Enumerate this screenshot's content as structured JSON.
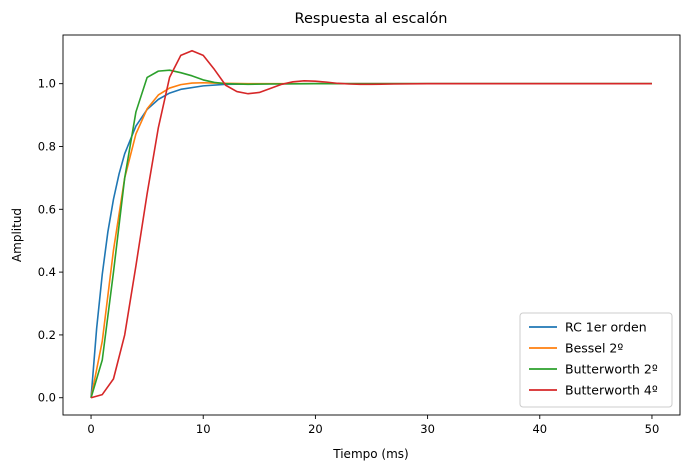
{
  "chart_data": {
    "type": "line",
    "title": "Respuesta al escalón",
    "xlabel": "Tiempo (ms)",
    "ylabel": "Amplitud",
    "xlim": [
      -2.5,
      52.5
    ],
    "ylim": [
      -0.055,
      1.155
    ],
    "xticks": [
      0,
      10,
      20,
      30,
      40,
      50
    ],
    "xtick_labels": [
      "0",
      "10",
      "20",
      "30",
      "40",
      "50"
    ],
    "yticks": [
      0.0,
      0.2,
      0.4,
      0.6,
      0.8,
      1.0
    ],
    "ytick_labels": [
      "0.0",
      "0.2",
      "0.4",
      "0.6",
      "0.8",
      "1.0"
    ],
    "grid": false,
    "legend_position": "lower-right",
    "series": [
      {
        "name": "RC 1er orden",
        "color": "#1f77b4",
        "x": [
          0,
          0.5,
          1,
          1.5,
          2,
          2.5,
          3,
          4,
          5,
          6,
          7,
          8,
          10,
          12,
          15,
          20,
          30,
          40,
          50
        ],
        "y": [
          0,
          0.221,
          0.393,
          0.528,
          0.632,
          0.713,
          0.777,
          0.865,
          0.918,
          0.95,
          0.97,
          0.982,
          0.993,
          0.998,
          0.9994,
          1.0,
          1.0,
          1.0,
          1.0
        ]
      },
      {
        "name": "Bessel 2º",
        "color": "#ff7f0e",
        "x": [
          0,
          1,
          2,
          3,
          4,
          5,
          6,
          7,
          8,
          9,
          10,
          11,
          12,
          14,
          16,
          20,
          30,
          40,
          50
        ],
        "y": [
          0,
          0.18,
          0.47,
          0.7,
          0.84,
          0.92,
          0.964,
          0.986,
          0.997,
          1.002,
          1.003,
          1.002,
          1.001,
          1.0,
          1.0,
          1.0,
          1.0,
          1.0,
          1.0
        ]
      },
      {
        "name": "Butterworth 2º",
        "color": "#2ca02c",
        "x": [
          0,
          1,
          2,
          3,
          4,
          5,
          6,
          7,
          8,
          9,
          10,
          11,
          12,
          14,
          16,
          20,
          30,
          40,
          50
        ],
        "y": [
          0,
          0.12,
          0.4,
          0.7,
          0.91,
          1.02,
          1.04,
          1.043,
          1.035,
          1.025,
          1.012,
          1.004,
          1.0,
          0.998,
          0.999,
          1.0,
          1.0,
          1.0,
          1.0
        ]
      },
      {
        "name": "Butterworth 4º",
        "color": "#d62728",
        "x": [
          0,
          1,
          2,
          3,
          4,
          5,
          6,
          7,
          8,
          9,
          10,
          11,
          12,
          13,
          14,
          15,
          16,
          17,
          18,
          19,
          20,
          21,
          22,
          23,
          24,
          25,
          27,
          30,
          35,
          40,
          50
        ],
        "y": [
          0,
          0.01,
          0.06,
          0.2,
          0.42,
          0.65,
          0.86,
          1.02,
          1.09,
          1.105,
          1.09,
          1.045,
          0.995,
          0.975,
          0.968,
          0.972,
          0.985,
          0.998,
          1.006,
          1.009,
          1.008,
          1.005,
          1.001,
          0.999,
          0.998,
          0.998,
          0.999,
          1.0,
          1.0,
          1.0,
          1.0
        ]
      }
    ]
  }
}
